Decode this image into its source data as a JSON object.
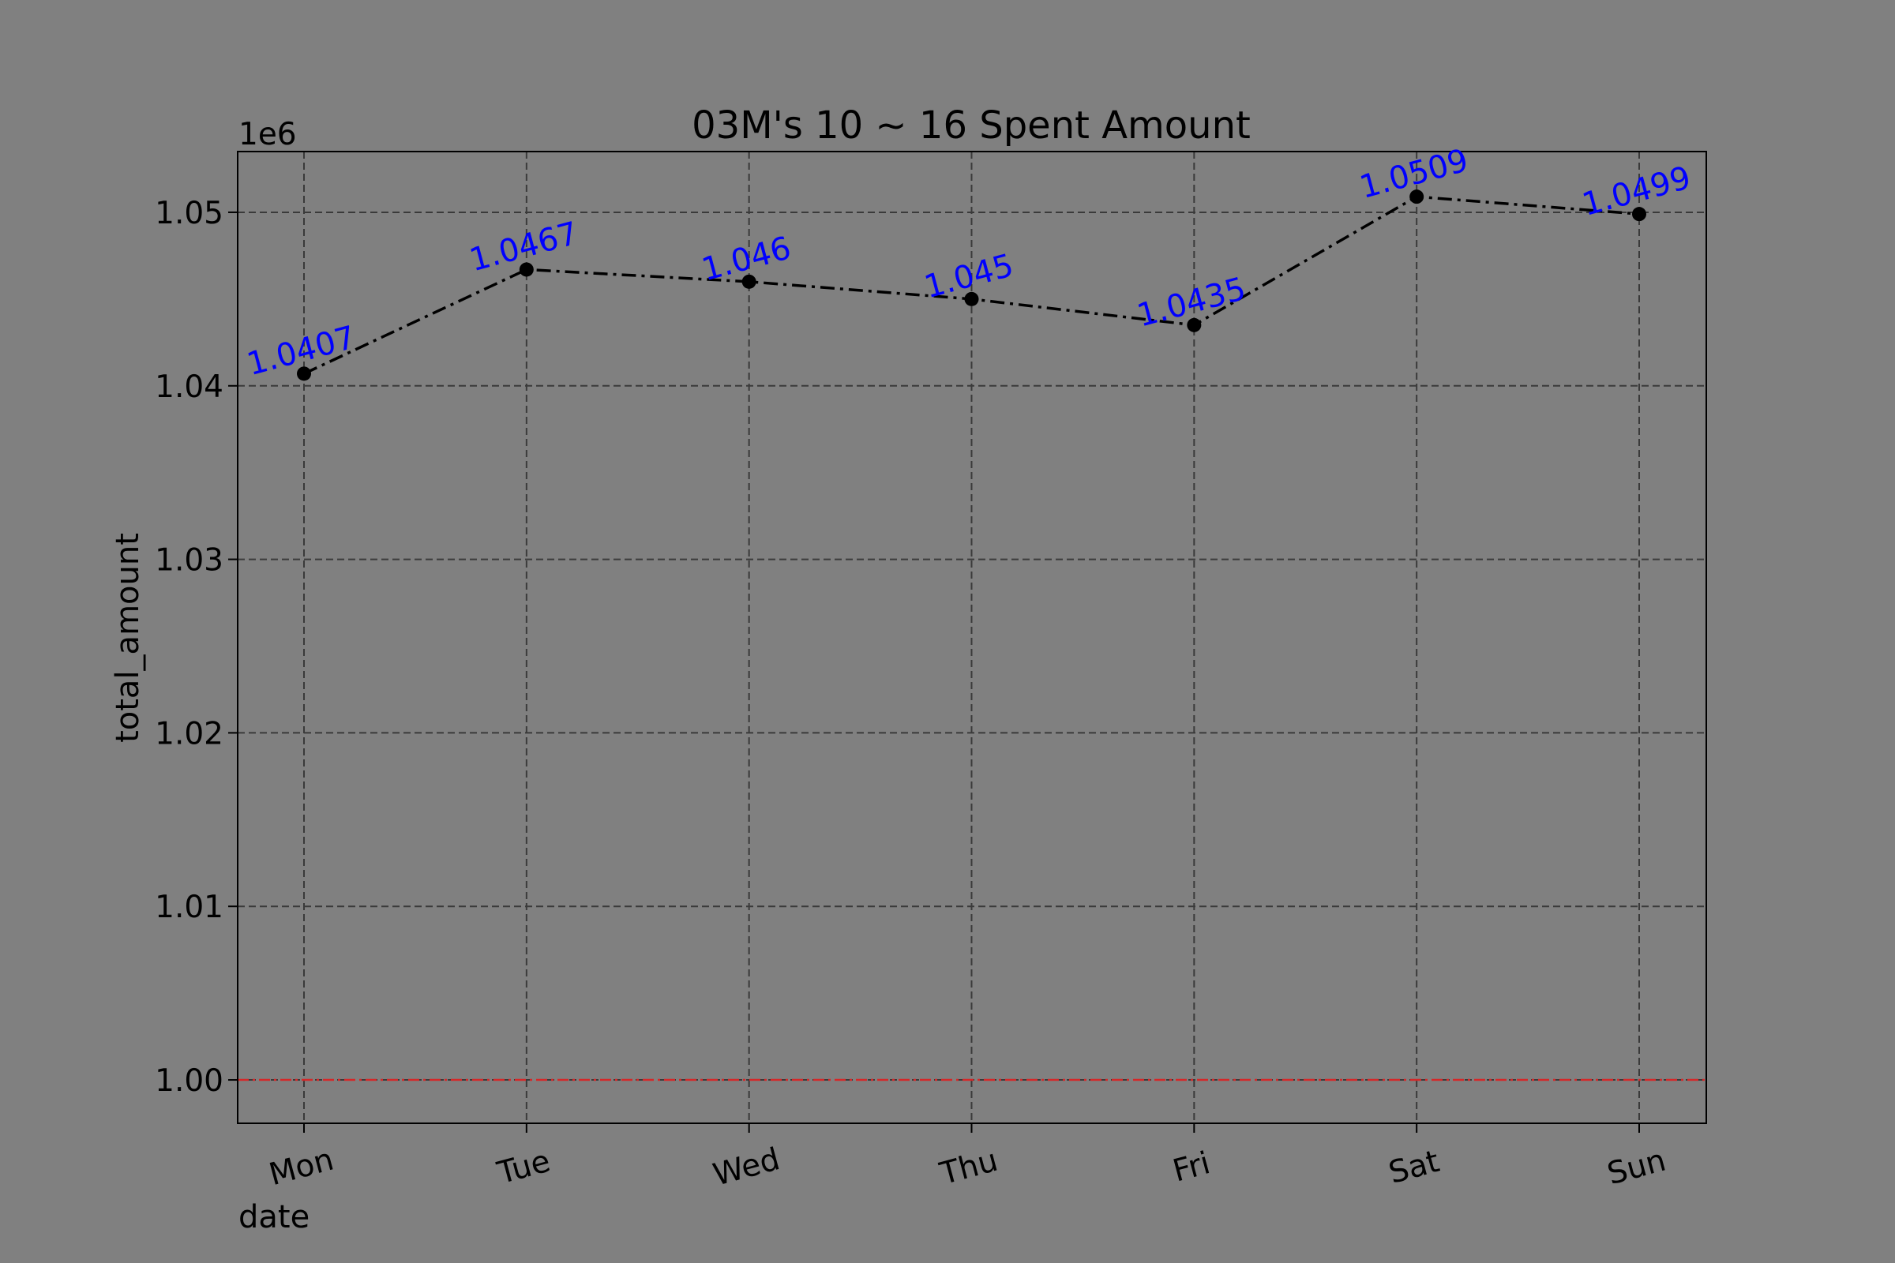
{
  "chart_data": {
    "type": "line",
    "title": "03M's 10 ~ 16 Spent Amount",
    "xlabel": "date",
    "ylabel": "total_amount",
    "offset_text": "1e6",
    "categories": [
      "Mon",
      "Tue",
      "Wed",
      "Thu",
      "Fri",
      "Sat",
      "Sun"
    ],
    "series": [
      {
        "values": [
          1040700,
          1046700,
          1046000,
          1045000,
          1043500,
          1050900,
          1049900
        ],
        "labels": [
          "1.0407",
          "1.0467",
          "1.046",
          "1.045",
          "1.0435",
          "1.0509",
          "1.0499"
        ],
        "color": "#000000",
        "line_style": "dash-dot",
        "marker": "circle"
      }
    ],
    "reference_line": {
      "y": 1000000,
      "color": "#d62728",
      "line_style": "dash-dot"
    },
    "ylim": [
      997500,
      1053500
    ],
    "yticks": [
      1000000,
      1010000,
      1020000,
      1030000,
      1040000,
      1050000
    ],
    "ytick_labels": [
      "1.00",
      "1.01",
      "1.02",
      "1.03",
      "1.04",
      "1.05"
    ],
    "grid": true,
    "label_color": "#0000ff",
    "background": "#808080"
  }
}
